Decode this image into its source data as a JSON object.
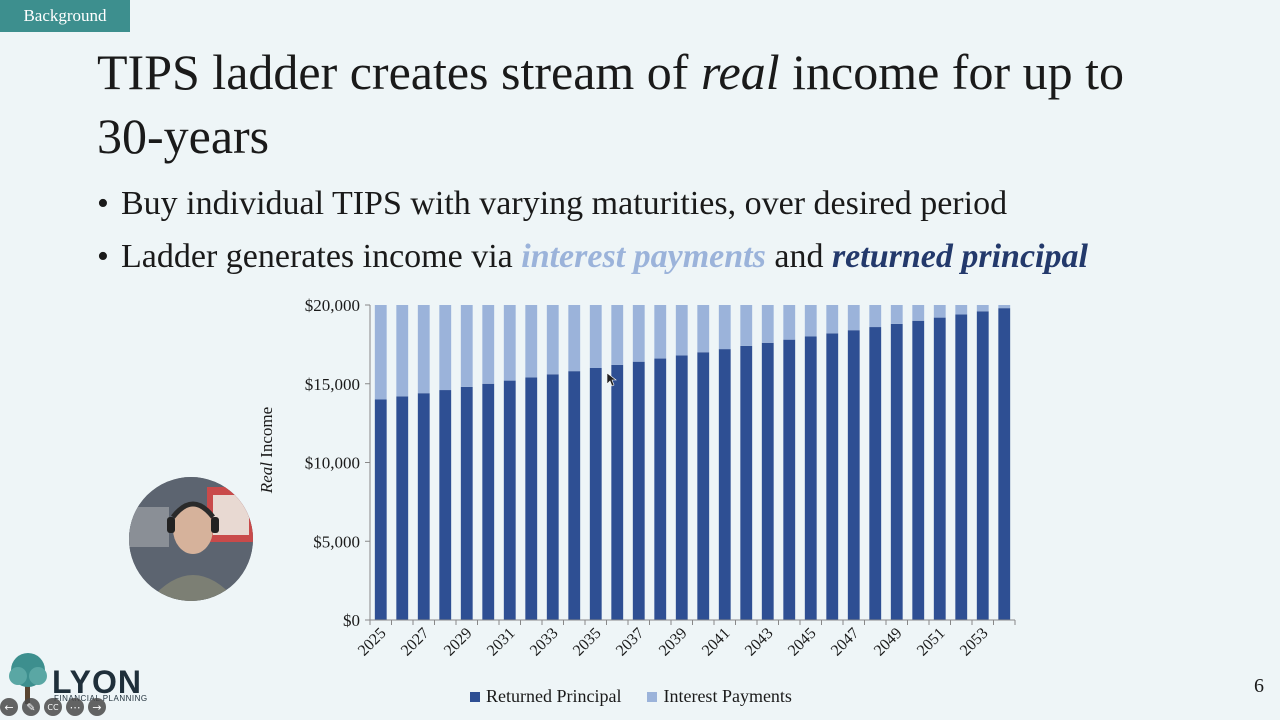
{
  "tag": "Background",
  "title": {
    "before": "TIPS ladder creates stream of ",
    "italic": "real",
    "after": " income for up to 30-years"
  },
  "bullets": [
    {
      "text": "Buy individual TIPS with varying maturities, over desired period"
    },
    {
      "text_a": "Ladder generates income via ",
      "interest": "interest payments",
      "text_b": " and ",
      "principal": "returned principal"
    }
  ],
  "chart_data": {
    "type": "bar",
    "stacked": true,
    "ylabel_italic": "Real",
    "ylabel_rest": " Income",
    "ylim": [
      0,
      20000
    ],
    "yticks": [
      "$0",
      "$5,000",
      "$10,000",
      "$15,000",
      "$20,000"
    ],
    "ytick_values": [
      0,
      5000,
      10000,
      15000,
      20000
    ],
    "categories": [
      "2025",
      "2026",
      "2027",
      "2028",
      "2029",
      "2030",
      "2031",
      "2032",
      "2033",
      "2034",
      "2035",
      "2036",
      "2037",
      "2038",
      "2039",
      "2040",
      "2041",
      "2042",
      "2043",
      "2044",
      "2045",
      "2046",
      "2047",
      "2048",
      "2049",
      "2050",
      "2051",
      "2052",
      "2053",
      "2054"
    ],
    "xtick_labels": [
      "2025",
      "2027",
      "2029",
      "2031",
      "2033",
      "2035",
      "2037",
      "2039",
      "2041",
      "2043",
      "2045",
      "2047",
      "2049",
      "2051",
      "2053"
    ],
    "series": [
      {
        "name": "Returned Principal",
        "color": "#2e4f93",
        "values": [
          14000,
          14200,
          14400,
          14600,
          14800,
          15000,
          15200,
          15400,
          15600,
          15800,
          16000,
          16200,
          16400,
          16600,
          16800,
          17000,
          17200,
          17400,
          17600,
          17800,
          18000,
          18200,
          18400,
          18600,
          18800,
          19000,
          19200,
          19400,
          19600,
          19800
        ]
      },
      {
        "name": "Interest Payments",
        "color": "#9bb3da",
        "values": [
          6000,
          5800,
          5600,
          5400,
          5200,
          5000,
          4800,
          4600,
          4400,
          4200,
          4000,
          3800,
          3600,
          3400,
          3200,
          3000,
          2800,
          2600,
          2400,
          2200,
          2000,
          1800,
          1600,
          1400,
          1200,
          1000,
          800,
          600,
          400,
          200
        ]
      }
    ],
    "legend": "bottom"
  },
  "logo": {
    "word": "LYON",
    "sub": "FINANCIAL PLANNING"
  },
  "controls": [
    "prev-icon",
    "pen-icon",
    "captions-icon",
    "more-icon",
    "next-icon"
  ],
  "controls_glyphs": {
    "captions": "CC"
  },
  "page_number": "6"
}
